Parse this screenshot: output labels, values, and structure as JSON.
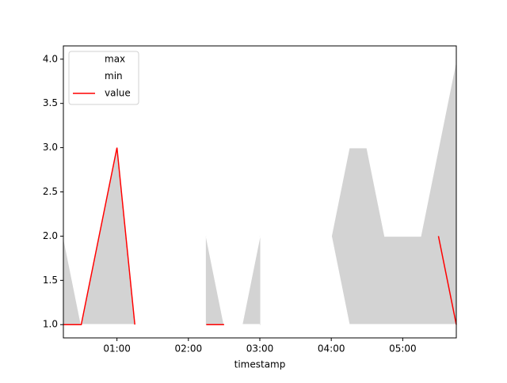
{
  "chart_data": {
    "type": "range_line",
    "x_label": "timestamp",
    "x": [
      "00:15",
      "00:30",
      "00:45",
      "01:00",
      "01:15",
      "01:30",
      "01:45",
      "02:00",
      "02:15",
      "02:30",
      "02:45",
      "03:00",
      "03:15",
      "03:30",
      "03:45",
      "04:00",
      "04:15",
      "04:30",
      "04:45",
      "05:00",
      "05:15",
      "05:30",
      "05:45"
    ],
    "series": [
      {
        "name": "max",
        "color": "#ffffff",
        "values": [
          2,
          1,
          2,
          3,
          1,
          1,
          1,
          null,
          2,
          1,
          1,
          2,
          null,
          1,
          1,
          2,
          3,
          3,
          2,
          2,
          2,
          3,
          4
        ]
      },
      {
        "name": "min",
        "color": "#ffffff",
        "values": [
          1,
          1,
          1,
          1,
          1,
          1,
          1,
          null,
          1,
          1,
          1,
          1,
          null,
          1,
          1,
          2,
          1,
          1,
          1,
          1,
          1,
          1,
          1
        ]
      },
      {
        "name": "value",
        "color": "#ff0000",
        "values": [
          1,
          1,
          2,
          3,
          1,
          null,
          null,
          null,
          1,
          1,
          null,
          null,
          null,
          null,
          null,
          null,
          null,
          null,
          null,
          null,
          null,
          2,
          1
        ]
      }
    ],
    "fill_color": "#d3d3d3",
    "xlim": [
      "00:15",
      "05:45"
    ],
    "xticks": [
      "01:00",
      "02:00",
      "03:00",
      "04:00",
      "05:00"
    ],
    "ylim": [
      0.85,
      4.15
    ],
    "yticks": [
      {
        "value": 1,
        "label": "1.0"
      },
      {
        "value": 1.5,
        "label": "1.5"
      },
      {
        "value": 2,
        "label": "2.0"
      },
      {
        "value": 2.5,
        "label": "2.5"
      },
      {
        "value": 3,
        "label": "3.0"
      },
      {
        "value": 3.5,
        "label": "3.5"
      },
      {
        "value": 4,
        "label": "4.0"
      }
    ],
    "legend": "upper left"
  }
}
